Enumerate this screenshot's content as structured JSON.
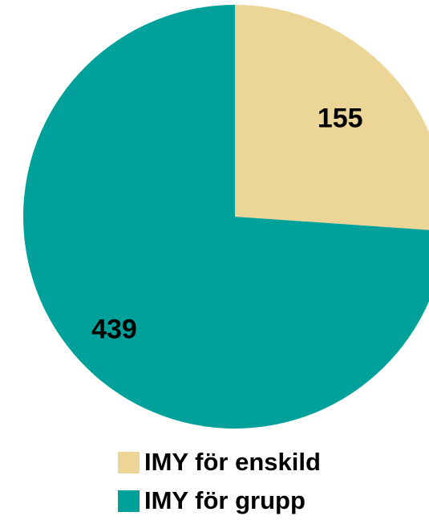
{
  "chart_data": {
    "type": "pie",
    "title": "",
    "categories": [
      "IMY för enskild",
      "IMY för grupp"
    ],
    "values": [
      155,
      439
    ],
    "colors": [
      "#EBD597",
      "#00A09B"
    ],
    "legend_position": "bottom",
    "data_labels": [
      "155",
      "439"
    ]
  }
}
